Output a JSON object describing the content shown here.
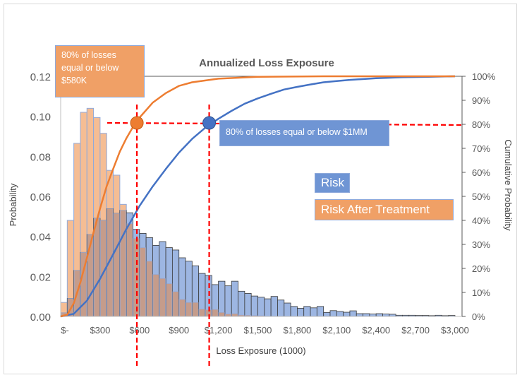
{
  "chart_data": {
    "type": "bar+line",
    "title": "Annualized Loss Exposure",
    "xlabel": "Loss Exposure (1000)",
    "ylabel": "Probability",
    "y2label": "Cumulative Probability",
    "xlim": [
      0,
      3000
    ],
    "ylim": [
      0,
      0.12
    ],
    "y2lim": [
      0,
      1
    ],
    "bin_width": 50,
    "x_tick_values": [
      0,
      300,
      600,
      900,
      1200,
      1500,
      1800,
      2100,
      2400,
      2700,
      3000
    ],
    "x_tick_labels": [
      "$-",
      "$300",
      "$600",
      "$900",
      "$1,200",
      "$1,500",
      "$1,800",
      "$2,100",
      "$2,400",
      "$2,700",
      "$3,000"
    ],
    "y_tick_labels": [
      "0.00",
      "0.02",
      "0.04",
      "0.06",
      "0.08",
      "0.10",
      "0.12"
    ],
    "y2_tick_labels": [
      "0%",
      "10%",
      "20%",
      "30%",
      "40%",
      "50%",
      "60%",
      "70%",
      "80%",
      "90%",
      "100%"
    ],
    "series": [
      {
        "name": "Risk",
        "kind": "histogram",
        "color": "#9db6e2",
        "values": [
          0.0018,
          0.009,
          0.023,
          0.032,
          0.041,
          0.049,
          0.048,
          0.0538,
          0.0515,
          0.053,
          0.0518,
          0.0435,
          0.0415,
          0.0394,
          0.0355,
          0.0374,
          0.0344,
          0.0332,
          0.0293,
          0.0276,
          0.0253,
          0.0215,
          0.0205,
          0.0159,
          0.0176,
          0.0153,
          0.0176,
          0.0126,
          0.0115,
          0.0102,
          0.0096,
          0.0088,
          0.01,
          0.0082,
          0.0067,
          0.005,
          0.0041,
          0.005,
          0.0043,
          0.005,
          0.002,
          0.0029,
          0.0025,
          0.0021,
          0.0028,
          0.0014,
          0.0014,
          0.0012,
          0.0014,
          0.0012,
          0.0011,
          0.0006,
          0.0006,
          0.0006,
          0.0005,
          0.0005,
          0.0004,
          0.0006,
          0.0004,
          0.0005
        ]
      },
      {
        "name": "Risk After Treatment",
        "kind": "histogram",
        "color": "#f5bd94",
        "values": [
          0.007,
          0.048,
          0.0865,
          0.102,
          0.104,
          0.0994,
          0.0915,
          0.073,
          0.0706,
          0.056,
          0.0464,
          0.039,
          0.0344,
          0.0276,
          0.021,
          0.019,
          0.0164,
          0.0124,
          0.0085,
          0.007,
          0.007,
          0.0037,
          0.0033,
          0.0035,
          0.002,
          0.0012,
          0.0014,
          0.0007,
          0.0006,
          0.0005,
          0.0004,
          0,
          0,
          0,
          0,
          0,
          0,
          0,
          0,
          0,
          0,
          0,
          0,
          0,
          0,
          0,
          0,
          0,
          0,
          0,
          0,
          0,
          0,
          0,
          0,
          0,
          0,
          0,
          0,
          0
        ]
      },
      {
        "name": "Risk",
        "kind": "cumulative",
        "color": "#4472c4",
        "x": [
          0,
          100,
          200,
          300,
          400,
          500,
          600,
          700,
          800,
          900,
          1000,
          1100,
          1200,
          1300,
          1400,
          1500,
          1600,
          1700,
          1800,
          1900,
          2000,
          2100,
          2200,
          2400,
          2600,
          2800,
          3000
        ],
        "values": [
          0,
          0.011,
          0.066,
          0.157,
          0.259,
          0.364,
          0.46,
          0.541,
          0.614,
          0.682,
          0.739,
          0.786,
          0.823,
          0.856,
          0.886,
          0.908,
          0.927,
          0.945,
          0.956,
          0.966,
          0.975,
          0.98,
          0.985,
          0.992,
          0.996,
          0.998,
          1.0
        ]
      },
      {
        "name": "Risk After Treatment",
        "kind": "cumulative",
        "color": "#ed7d31",
        "x": [
          0,
          50,
          100,
          150,
          200,
          250,
          300,
          350,
          400,
          450,
          500,
          550,
          600,
          700,
          800,
          900,
          1000,
          1200,
          1500,
          2000,
          3000
        ],
        "values": [
          0,
          0.007,
          0.055,
          0.142,
          0.245,
          0.35,
          0.45,
          0.542,
          0.615,
          0.686,
          0.742,
          0.789,
          0.828,
          0.89,
          0.93,
          0.96,
          0.975,
          0.99,
          0.998,
          1.0,
          1.0
        ]
      }
    ],
    "markers": [
      {
        "x": 580,
        "y2": 0.8,
        "color": "#ed7d31"
      },
      {
        "x": 1130,
        "y2": 0.8,
        "color": "#4472c4"
      }
    ],
    "reference_line_color": "#ff0000",
    "overlap_color": "#c59c8b",
    "annotations": {
      "orange_note": "80% of losses equal or below $580K",
      "blue_note": "80% of losses equal or below $1MM"
    },
    "legend": {
      "placement": "right-center",
      "items": [
        "Risk",
        "Risk After Treatment"
      ]
    },
    "grid": false
  }
}
